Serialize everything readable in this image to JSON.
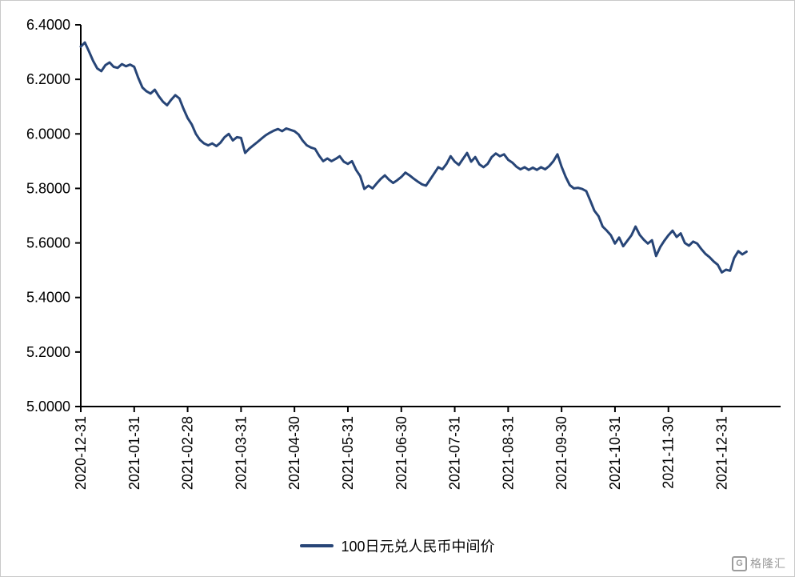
{
  "chart_data": {
    "type": "line",
    "title": "",
    "x_ticks": [
      "2020-12-31",
      "2021-01-31",
      "2021-02-28",
      "2021-03-31",
      "2021-04-30",
      "2021-05-31",
      "2021-06-30",
      "2021-07-31",
      "2021-08-31",
      "2021-09-30",
      "2021-10-31",
      "2021-11-30",
      "2021-12-31"
    ],
    "y_ticks": [
      "5.0000",
      "5.2000",
      "5.4000",
      "5.6000",
      "5.8000",
      "6.0000",
      "6.2000",
      "6.4000"
    ],
    "y_min": 5.0,
    "y_max": 6.4,
    "axis_month_span": 13.1,
    "points_per_month": 13,
    "grid": "off",
    "legend_position": "bottom",
    "line_color": "#274577",
    "axis_color": "#000000",
    "series": [
      {
        "name": "100日元兑人民币中间价",
        "values": [
          6.32,
          6.335,
          6.302,
          6.268,
          6.24,
          6.23,
          6.252,
          6.262,
          6.246,
          6.242,
          6.256,
          6.248,
          6.254,
          6.246,
          6.205,
          6.17,
          6.156,
          6.148,
          6.162,
          6.138,
          6.118,
          6.105,
          6.125,
          6.142,
          6.13,
          6.092,
          6.058,
          6.035,
          6.0,
          5.978,
          5.965,
          5.958,
          5.965,
          5.955,
          5.968,
          5.988,
          6.0,
          5.976,
          5.988,
          5.985,
          5.93,
          5.946,
          5.958,
          5.97,
          5.983,
          5.995,
          6.004,
          6.012,
          6.018,
          6.01,
          6.02,
          6.015,
          6.01,
          5.998,
          5.975,
          5.958,
          5.95,
          5.945,
          5.92,
          5.9,
          5.91,
          5.9,
          5.908,
          5.918,
          5.898,
          5.89,
          5.9,
          5.868,
          5.845,
          5.798,
          5.81,
          5.8,
          5.818,
          5.835,
          5.848,
          5.832,
          5.82,
          5.83,
          5.842,
          5.858,
          5.848,
          5.836,
          5.825,
          5.815,
          5.81,
          5.832,
          5.855,
          5.878,
          5.87,
          5.89,
          5.918,
          5.898,
          5.886,
          5.908,
          5.93,
          5.898,
          5.915,
          5.888,
          5.878,
          5.89,
          5.915,
          5.928,
          5.918,
          5.925,
          5.905,
          5.895,
          5.88,
          5.87,
          5.878,
          5.868,
          5.876,
          5.868,
          5.878,
          5.87,
          5.882,
          5.9,
          5.925,
          5.88,
          5.842,
          5.812,
          5.8,
          5.802,
          5.798,
          5.79,
          5.755,
          5.718,
          5.698,
          5.66,
          5.645,
          5.628,
          5.598,
          5.62,
          5.588,
          5.608,
          5.628,
          5.66,
          5.63,
          5.612,
          5.598,
          5.61,
          5.552,
          5.585,
          5.608,
          5.628,
          5.645,
          5.622,
          5.635,
          5.6,
          5.59,
          5.605,
          5.598,
          5.578,
          5.56,
          5.548,
          5.532,
          5.52,
          5.492,
          5.502,
          5.498,
          5.545,
          5.57,
          5.558,
          5.568
        ]
      }
    ]
  },
  "watermark": {
    "text": "格隆汇",
    "icon_letter": "G"
  }
}
